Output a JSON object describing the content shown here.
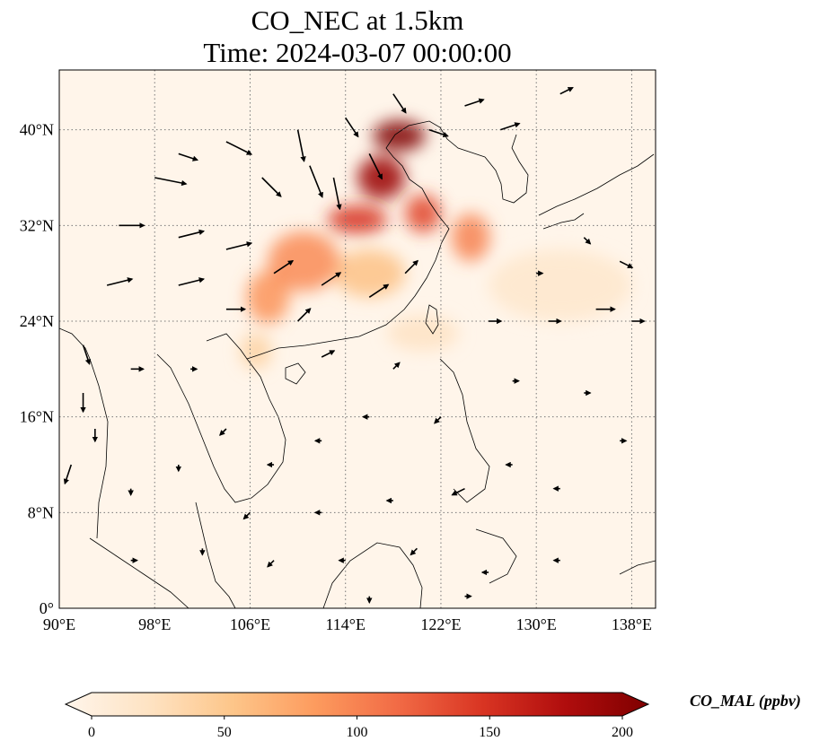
{
  "title_line1": "CO_NEC at 1.5km",
  "title_line2": "Time: 2024-03-07 00:00:00",
  "map": {
    "lon_range": [
      90,
      140
    ],
    "lat_range": [
      0,
      45
    ],
    "lon_ticks": [
      {
        "value": 90,
        "label": "90°E"
      },
      {
        "value": 98,
        "label": "98°E"
      },
      {
        "value": 106,
        "label": "106°E"
      },
      {
        "value": 114,
        "label": "114°E"
      },
      {
        "value": 122,
        "label": "122°E"
      },
      {
        "value": 130,
        "label": "130°E"
      },
      {
        "value": 138,
        "label": "138°E"
      }
    ],
    "lat_ticks": [
      {
        "value": 0,
        "label": "0°"
      },
      {
        "value": 8,
        "label": "8°N"
      },
      {
        "value": 16,
        "label": "16°N"
      },
      {
        "value": 24,
        "label": "24°N"
      },
      {
        "value": 32,
        "label": "32°N"
      },
      {
        "value": 40,
        "label": "40°N"
      }
    ],
    "gridlines": true,
    "background_color": "#fff5ea",
    "plumes": [
      {
        "lon": 118.5,
        "lat": 39.5,
        "rx": 2.2,
        "ry": 1.3,
        "level": 205
      },
      {
        "lon": 117.0,
        "lat": 36.0,
        "rx": 2.0,
        "ry": 1.8,
        "level": 185
      },
      {
        "lon": 115.0,
        "lat": 32.5,
        "rx": 2.5,
        "ry": 1.2,
        "level": 145
      },
      {
        "lon": 120.5,
        "lat": 33.0,
        "rx": 1.5,
        "ry": 1.6,
        "level": 135
      },
      {
        "lon": 124.5,
        "lat": 31.0,
        "rx": 1.6,
        "ry": 2.0,
        "level": 100
      },
      {
        "lon": 110.5,
        "lat": 29.0,
        "rx": 3.0,
        "ry": 2.5,
        "level": 95
      },
      {
        "lon": 107.5,
        "lat": 26.0,
        "rx": 1.8,
        "ry": 2.2,
        "level": 90
      },
      {
        "lon": 116.0,
        "lat": 28.0,
        "rx": 3.0,
        "ry": 2.0,
        "level": 60
      },
      {
        "lon": 106.5,
        "lat": 21.5,
        "rx": 1.3,
        "ry": 1.5,
        "level": 45
      },
      {
        "lon": 120.5,
        "lat": 23.0,
        "rx": 3.0,
        "ry": 1.5,
        "level": 28
      },
      {
        "lon": 132.0,
        "lat": 27.0,
        "rx": 6.0,
        "ry": 3.0,
        "level": 22
      }
    ],
    "wind_vectors": [
      {
        "lon": 98,
        "lat": 36,
        "u": 5,
        "v": -1
      },
      {
        "lon": 100,
        "lat": 38,
        "u": 3,
        "v": -1
      },
      {
        "lon": 104,
        "lat": 39,
        "u": 4,
        "v": -2
      },
      {
        "lon": 107,
        "lat": 36,
        "u": 3,
        "v": -3
      },
      {
        "lon": 110,
        "lat": 40,
        "u": 1,
        "v": -5
      },
      {
        "lon": 111,
        "lat": 37,
        "u": 2,
        "v": -5
      },
      {
        "lon": 113,
        "lat": 36,
        "u": 1,
        "v": -5
      },
      {
        "lon": 114,
        "lat": 41,
        "u": 2,
        "v": -3
      },
      {
        "lon": 116,
        "lat": 38,
        "u": 2,
        "v": -4
      },
      {
        "lon": 118,
        "lat": 43,
        "u": 2,
        "v": -3
      },
      {
        "lon": 121,
        "lat": 40,
        "u": 3,
        "v": -1
      },
      {
        "lon": 124,
        "lat": 42,
        "u": 3,
        "v": 1
      },
      {
        "lon": 127,
        "lat": 40,
        "u": 3,
        "v": 1
      },
      {
        "lon": 132,
        "lat": 43,
        "u": 2,
        "v": 1
      },
      {
        "lon": 95,
        "lat": 32,
        "u": 4,
        "v": 0
      },
      {
        "lon": 100,
        "lat": 31,
        "u": 4,
        "v": 1
      },
      {
        "lon": 104,
        "lat": 30,
        "u": 4,
        "v": 1
      },
      {
        "lon": 108,
        "lat": 28,
        "u": 3,
        "v": 2
      },
      {
        "lon": 112,
        "lat": 27,
        "u": 3,
        "v": 2
      },
      {
        "lon": 116,
        "lat": 26,
        "u": 3,
        "v": 2
      },
      {
        "lon": 119,
        "lat": 28,
        "u": 2,
        "v": 2
      },
      {
        "lon": 94,
        "lat": 27,
        "u": 4,
        "v": 1
      },
      {
        "lon": 100,
        "lat": 27,
        "u": 4,
        "v": 1
      },
      {
        "lon": 104,
        "lat": 25,
        "u": 3,
        "v": 0
      },
      {
        "lon": 92,
        "lat": 22,
        "u": 1,
        "v": -3
      },
      {
        "lon": 92,
        "lat": 18,
        "u": 0,
        "v": -3
      },
      {
        "lon": 93,
        "lat": 15,
        "u": 0,
        "v": -2
      },
      {
        "lon": 91,
        "lat": 12,
        "u": -1,
        "v": -3
      },
      {
        "lon": 96,
        "lat": 20,
        "u": 2,
        "v": 0
      },
      {
        "lon": 101,
        "lat": 20,
        "u": 1,
        "v": 0
      },
      {
        "lon": 110,
        "lat": 24,
        "u": 2,
        "v": 2
      },
      {
        "lon": 112,
        "lat": 21,
        "u": 2,
        "v": 1
      },
      {
        "lon": 118,
        "lat": 20,
        "u": 1,
        "v": 1
      },
      {
        "lon": 126,
        "lat": 24,
        "u": 2,
        "v": 0
      },
      {
        "lon": 131,
        "lat": 24,
        "u": 2,
        "v": 0
      },
      {
        "lon": 135,
        "lat": 25,
        "u": 3,
        "v": 0
      },
      {
        "lon": 138,
        "lat": 24,
        "u": 2,
        "v": 0
      },
      {
        "lon": 137,
        "lat": 29,
        "u": 2,
        "v": -1
      },
      {
        "lon": 134,
        "lat": 31,
        "u": 1,
        "v": -1
      },
      {
        "lon": 130,
        "lat": 28,
        "u": 1,
        "v": 0
      },
      {
        "lon": 128,
        "lat": 19,
        "u": 1,
        "v": 0
      },
      {
        "lon": 134,
        "lat": 18,
        "u": 1,
        "v": 0
      },
      {
        "lon": 137,
        "lat": 14,
        "u": 1,
        "v": 0
      },
      {
        "lon": 122,
        "lat": 16,
        "u": -1,
        "v": -1
      },
      {
        "lon": 116,
        "lat": 16,
        "u": -1,
        "v": 0
      },
      {
        "lon": 112,
        "lat": 14,
        "u": -1,
        "v": 0
      },
      {
        "lon": 108,
        "lat": 12,
        "u": -1,
        "v": 0
      },
      {
        "lon": 104,
        "lat": 15,
        "u": -1,
        "v": -1
      },
      {
        "lon": 100,
        "lat": 12,
        "u": 0,
        "v": -1
      },
      {
        "lon": 96,
        "lat": 10,
        "u": 0,
        "v": -1
      },
      {
        "lon": 106,
        "lat": 8,
        "u": -1,
        "v": -1
      },
      {
        "lon": 112,
        "lat": 8,
        "u": -1,
        "v": 0
      },
      {
        "lon": 118,
        "lat": 9,
        "u": -1,
        "v": 0
      },
      {
        "lon": 124,
        "lat": 10,
        "u": -2,
        "v": -1
      },
      {
        "lon": 128,
        "lat": 12,
        "u": -1,
        "v": 0
      },
      {
        "lon": 132,
        "lat": 10,
        "u": -1,
        "v": 0
      },
      {
        "lon": 96,
        "lat": 4,
        "u": 1,
        "v": 0
      },
      {
        "lon": 102,
        "lat": 5,
        "u": 0,
        "v": -1
      },
      {
        "lon": 108,
        "lat": 4,
        "u": -1,
        "v": -1
      },
      {
        "lon": 114,
        "lat": 4,
        "u": -1,
        "v": 0
      },
      {
        "lon": 120,
        "lat": 5,
        "u": -1,
        "v": -1
      },
      {
        "lon": 126,
        "lat": 3,
        "u": -1,
        "v": 0
      },
      {
        "lon": 132,
        "lat": 4,
        "u": -1,
        "v": 0
      },
      {
        "lon": 116,
        "lat": 1,
        "u": 0,
        "v": -1
      },
      {
        "lon": 124,
        "lat": 1,
        "u": 1,
        "v": 0
      }
    ]
  },
  "colorbar": {
    "label": "CO_MAL (ppbv)",
    "min": 0,
    "max": 200,
    "ticks": [
      {
        "value": 0,
        "label": "0"
      },
      {
        "value": 50,
        "label": "50"
      },
      {
        "value": 100,
        "label": "100"
      },
      {
        "value": 150,
        "label": "150"
      },
      {
        "value": 200,
        "label": "200"
      }
    ],
    "colors": [
      "#fff5eb",
      "#fee3c3",
      "#fdc68a",
      "#fd9b5e",
      "#f16a45",
      "#d93523",
      "#b00d0d",
      "#7f0000"
    ]
  }
}
